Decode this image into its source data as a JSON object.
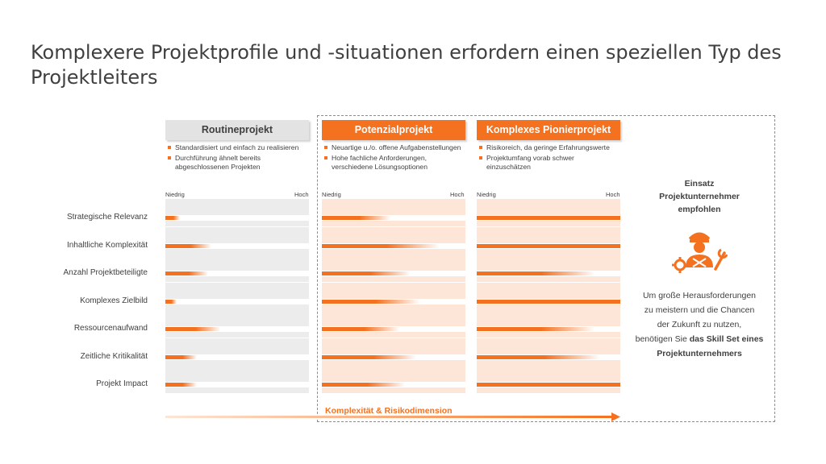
{
  "title": "Komplexere Projektprofile und -situationen erfordern einen speziellen Typ des Projektleiters",
  "columns": [
    {
      "name": "Routineprojekt",
      "bullets": [
        "Standardisiert und einfach zu realisieren",
        "Durchführung ähnelt bereits abgeschlossenen Projekten"
      ],
      "low": "Niedrig",
      "high": "Hoch"
    },
    {
      "name": "Potenzialprojekt",
      "bullets": [
        "Neuartige u./o. offene Aufgabenstellungen",
        "Hohe fachliche Anforderungen, verschiedene Lösungsoptionen"
      ],
      "low": "Niedrig",
      "high": "Hoch"
    },
    {
      "name": "Komplexes Pionierprojekt",
      "bullets": [
        "Risikoreich, da geringe Erfahrungswerte",
        "Projektumfang vorab schwer einzuschätzen"
      ],
      "low": "Niedrig",
      "high": "Hoch"
    }
  ],
  "rows": [
    "Strategische Relevanz",
    "Inhaltliche Komplexität",
    "Anzahl Projektbeteiligte",
    "Komplexes Zielbild",
    "Ressourcenaufwand",
    "Zeitliche Kritikalität",
    "Projekt Impact"
  ],
  "levels": [
    [
      0.1,
      0.48,
      1.0
    ],
    [
      0.32,
      0.82,
      1.0
    ],
    [
      0.3,
      0.62,
      0.82
    ],
    [
      0.08,
      0.68,
      1.0
    ],
    [
      0.38,
      0.54,
      0.82
    ],
    [
      0.22,
      0.66,
      0.86
    ],
    [
      0.22,
      0.58,
      1.0
    ]
  ],
  "recommendation": {
    "line1": "Einsatz",
    "line2": "Projektunternehmer",
    "line3": "empfohlen",
    "desc1": "Um große Herausforderungen",
    "desc2": "zu meistern und die Chancen",
    "desc3": "der Zukunft zu nutzen,",
    "desc4_plain": "benötigen Sie ",
    "desc4_bold": "das Skill Set eines",
    "desc5_bold": "Projektunternehmers"
  },
  "arrow_label": "Komplexität & Risikodimension",
  "colors": {
    "accent": "#f47120",
    "accent_light": "#fde6d7",
    "grey_band": "#ececec",
    "grey_head": "#e3e3e3"
  }
}
